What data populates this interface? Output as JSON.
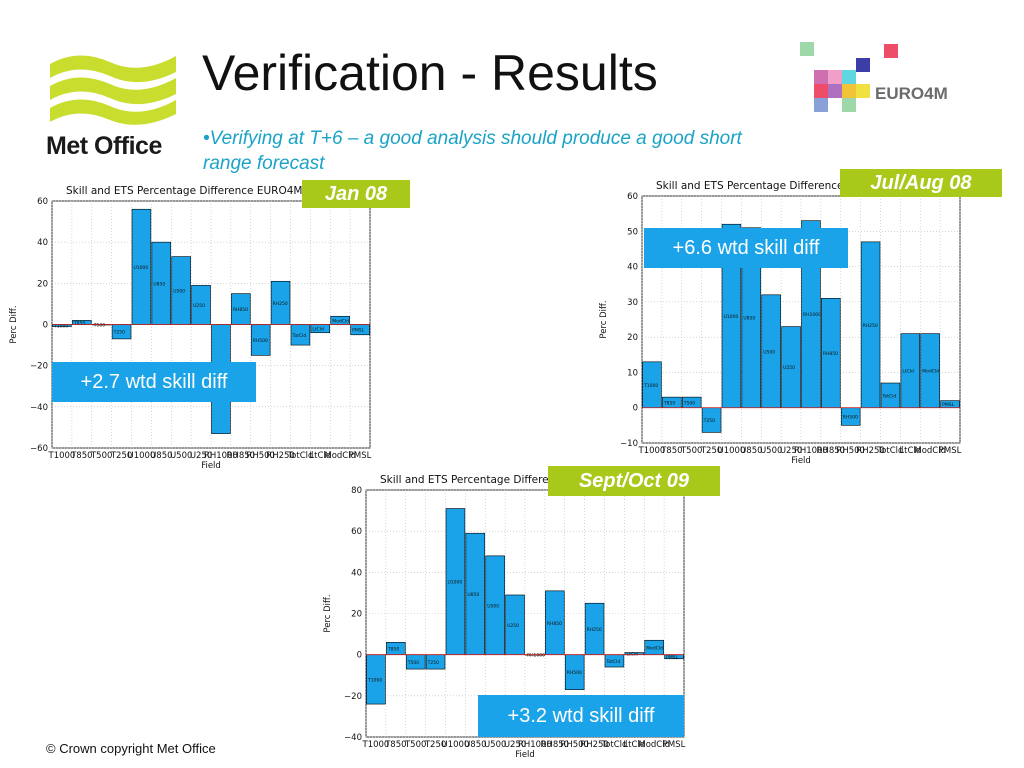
{
  "slide": {
    "title": "Verification - Results",
    "bullet": "•Verifying at T+6 – a good analysis should produce a good short range forecast",
    "logo_text": "Met Office",
    "partner_logo_text": "EURO4M",
    "copyright": "© Crown copyright   Met Office"
  },
  "colors": {
    "bar": "#1aa3e8",
    "accent_green": "#a8c91a",
    "text_cyan": "#1aa3c7"
  },
  "chart_data": [
    {
      "type": "bar",
      "title": "Skill and ETS Percentage Difference EURO4M-",
      "period_label": "Jan 08",
      "summary": "+2.7 wtd skill diff",
      "xlabel": "Field",
      "ylabel": "Perc Diff.",
      "ylim": [
        -60,
        60
      ],
      "yticks": [
        60,
        40,
        20,
        0,
        -20,
        -40,
        -60
      ],
      "ytick_labels": [
        "60",
        "40",
        "20",
        "0",
        "−20",
        "−40",
        "−60"
      ],
      "categories": [
        "T1000",
        "T850",
        "T500",
        "T250",
        "U1000",
        "U850",
        "U500",
        "U250",
        "RH1000",
        "RH850",
        "RH500",
        "RH250",
        "TotCld",
        "LtCld",
        "ModCld",
        "PMSL"
      ],
      "values": [
        -1,
        2,
        0,
        -7,
        56,
        40,
        33,
        19,
        -53,
        15,
        -15,
        21,
        -10,
        -4,
        4,
        -5
      ],
      "bar_labels": [
        "T1000",
        "T850",
        "T500",
        "T250",
        "U1000",
        "U850",
        "U500",
        "U250",
        "RH1000",
        "RH850",
        "RH500",
        "RH250",
        "TotCld",
        "LtCld",
        "ModCld",
        "PMSL"
      ],
      "grid": true
    },
    {
      "type": "bar",
      "title": "Skill and ETS Percentage Difference",
      "period_label": "Jul/Aug 08",
      "summary": "+6.6 wtd skill diff",
      "xlabel": "Field",
      "ylabel": "Perc Diff.",
      "ylim": [
        -10,
        60
      ],
      "yticks": [
        60,
        50,
        40,
        30,
        20,
        10,
        0,
        -10
      ],
      "ytick_labels": [
        "60",
        "50",
        "40",
        "30",
        "20",
        "10",
        "0",
        "−10"
      ],
      "categories": [
        "T1000",
        "T850",
        "T500",
        "T250",
        "U1000",
        "U850",
        "U500",
        "U250",
        "RH1000",
        "RH850",
        "RH500",
        "RH250",
        "TotCld",
        "LtCld",
        "ModCld",
        "PMSL"
      ],
      "values": [
        13,
        3,
        3,
        -7,
        52,
        51,
        32,
        23,
        53,
        31,
        -5,
        47,
        7,
        21,
        21,
        2
      ],
      "bar_labels": [
        "T1000",
        "T850",
        "T500",
        "T250",
        "U1000",
        "U850",
        "U500",
        "U250",
        "RH1000",
        "RH850",
        "RH500",
        "RH250",
        "TotCld",
        "LtCld",
        "ModCld",
        "PMSL"
      ],
      "grid": true
    },
    {
      "type": "bar",
      "title": "Skill and ETS Percentage Differe",
      "period_label": "Sept/Oct 09",
      "summary": "+3.2 wtd skill diff",
      "xlabel": "Field",
      "ylabel": "Perc Diff.",
      "ylim": [
        -40,
        80
      ],
      "yticks": [
        80,
        60,
        40,
        20,
        0,
        -20,
        -40
      ],
      "ytick_labels": [
        "80",
        "60",
        "40",
        "20",
        "0",
        "−20",
        "−40"
      ],
      "categories": [
        "T1000",
        "T850",
        "T500",
        "T250",
        "U1000",
        "U850",
        "U500",
        "U250",
        "RH1000",
        "RH850",
        "RH500",
        "RH250",
        "TotCld",
        "LtCld",
        "ModCld",
        "PMSL"
      ],
      "values": [
        -24,
        6,
        -7,
        -7,
        71,
        59,
        48,
        29,
        0,
        31,
        -17,
        25,
        -6,
        1,
        7,
        -2
      ],
      "bar_labels": [
        "T1000",
        "T850",
        "T500",
        "T250",
        "U1000",
        "U850",
        "U500",
        "U250",
        "RH1000",
        "RH850",
        "RH500",
        "RH250",
        "TotCld",
        "LtCld",
        "ModCld",
        "PMSL"
      ],
      "grid": true
    }
  ]
}
